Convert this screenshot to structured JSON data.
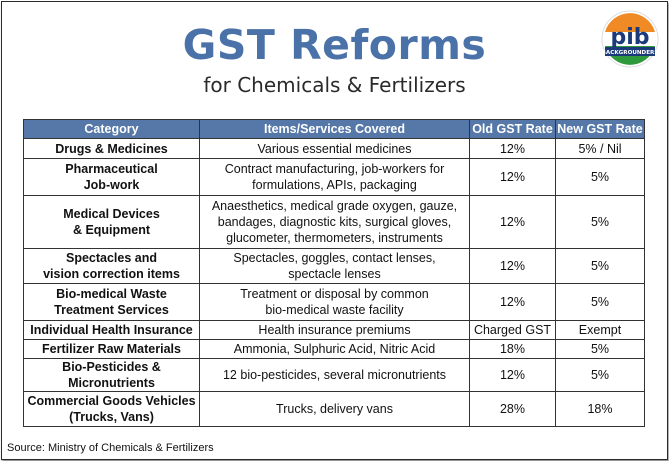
{
  "header": {
    "title": "GST Reforms",
    "subtitle": "for Chemicals & Fertilizers"
  },
  "logo": {
    "icon": "pib-logo-icon",
    "text": "BACKGROUNDERS",
    "colors": [
      "#f08a24",
      "#ffffff",
      "#2f9a3b",
      "#1b3a7a"
    ]
  },
  "table": {
    "headers": [
      "Category",
      "Items/Services Covered",
      "Old GST Rate",
      "New GST Rate"
    ],
    "header_color": "#5578a8",
    "rows": [
      {
        "category": "Drugs & Medicines",
        "items": "Various essential medicines",
        "old": "12%",
        "new": "5% / Nil"
      },
      {
        "category": "Pharmaceutical\nJob-work",
        "items": "Contract manufacturing, job-workers for\nformulations, APIs, packaging",
        "old": "12%",
        "new": "5%"
      },
      {
        "category": "Medical Devices\n& Equipment",
        "items": "Anaesthetics, medical grade oxygen, gauze,\nbandages, diagnostic kits, surgical gloves,\nglucometer, thermometers, instruments",
        "old": "12%",
        "new": "5%"
      },
      {
        "category": "Spectacles and\nvision correction items",
        "items": "Spectacles, goggles, contact lenses,\nspectacle lenses",
        "old": "12%",
        "new": "5%"
      },
      {
        "category": "Bio-medical Waste\nTreatment Services",
        "items": "Treatment or disposal by common\nbio-medical waste facility",
        "old": "12%",
        "new": "5%"
      },
      {
        "category": "Individual Health Insurance",
        "items": "Health insurance premiums",
        "old": "Charged GST",
        "new": "Exempt"
      },
      {
        "category": "Fertilizer Raw Materials",
        "items": "Ammonia, Sulphuric Acid, Nitric Acid",
        "old": "18%",
        "new": "5%"
      },
      {
        "category": "Bio-Pesticides &\nMicronutrients",
        "items": "12 bio-pesticides, several micronutrients",
        "old": "12%",
        "new": "5%"
      },
      {
        "category": "Commercial Goods Vehicles\n(Trucks, Vans)",
        "items": "Trucks, delivery vans",
        "old": "28%",
        "new": "18%"
      }
    ]
  },
  "source": "Source: Ministry of Chemicals & Fertilizers"
}
